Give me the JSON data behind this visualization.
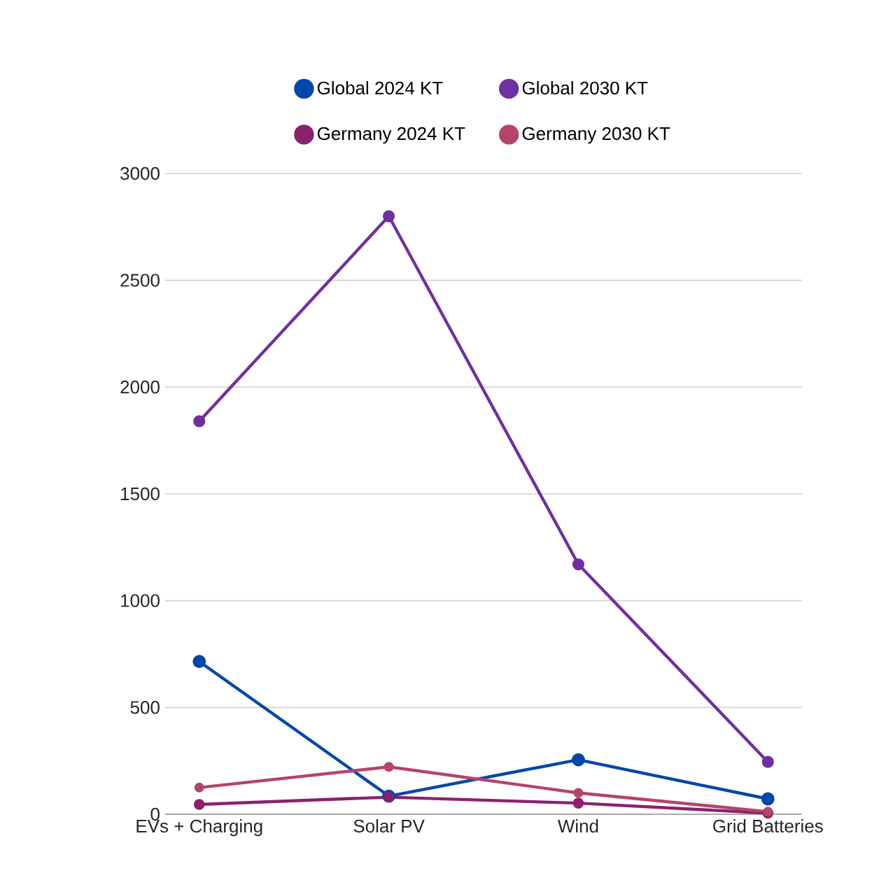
{
  "chart_data": {
    "type": "line",
    "categories": [
      "EVs + Charging",
      "Solar PV",
      "Wind",
      "Grid Batteries"
    ],
    "series": [
      {
        "name": "Global 2024 KT",
        "color": "#0047ab",
        "values": [
          715,
          85,
          255,
          72
        ]
      },
      {
        "name": "Global 2030 KT",
        "color": "#7030a0",
        "values": [
          1840,
          2800,
          1170,
          245
        ]
      },
      {
        "name": "Germany 2024 KT",
        "color": "#8b2070",
        "values": [
          46,
          80,
          52,
          5
        ]
      },
      {
        "name": "Germany 2030 KT",
        "color": "#b5446a",
        "values": [
          125,
          222,
          100,
          12
        ]
      }
    ],
    "ylim": [
      0,
      3000
    ],
    "yticks": [
      0,
      500,
      1000,
      1500,
      2000,
      2500,
      3000
    ],
    "grid": "y",
    "legend": "top",
    "marker": "circle",
    "line_style": "solid"
  }
}
